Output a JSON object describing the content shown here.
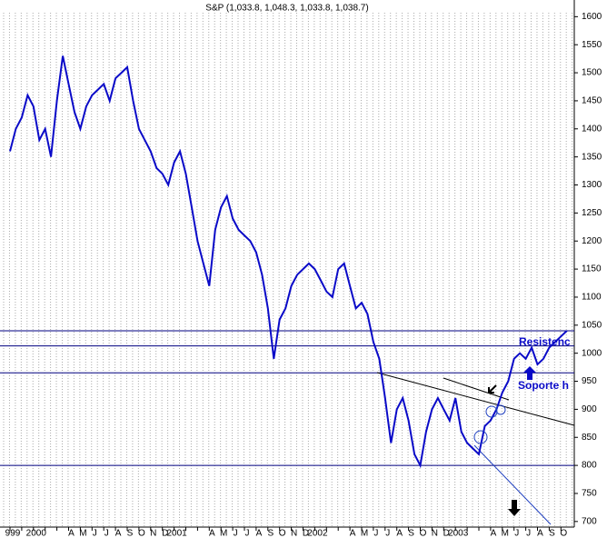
{
  "chart_data": {
    "type": "line",
    "title": "S&P (1,033.8, 1,048.3, 1,033.8, 1,038.7)",
    "x": [
      "999",
      null,
      null,
      null,
      "2000",
      null,
      null,
      null,
      null,
      null,
      "A",
      null,
      "M",
      null,
      "J",
      null,
      "J",
      null,
      "A",
      null,
      "S",
      null,
      "O",
      null,
      "N",
      null,
      "D",
      null,
      "2001",
      null,
      null,
      null,
      null,
      null,
      "A",
      null,
      "M",
      null,
      "J",
      null,
      "J",
      null,
      "A",
      null,
      "S",
      null,
      "O",
      null,
      "N",
      null,
      "D",
      null,
      "2002",
      null,
      null,
      null,
      null,
      null,
      "A",
      null,
      "M",
      null,
      "J",
      null,
      "J",
      null,
      "A",
      null,
      "S",
      null,
      "O",
      null,
      "N",
      null,
      "D",
      null,
      "2003",
      null,
      null,
      null,
      null,
      null,
      "A",
      null,
      "M",
      null,
      "J",
      null,
      "J",
      null,
      "A",
      null,
      "S",
      null,
      "O",
      null
    ],
    "series": [
      {
        "name": "S&P",
        "color": "#0a0ac8",
        "values": [
          1360,
          1400,
          1420,
          1460,
          1440,
          1380,
          1400,
          1350,
          1450,
          1530,
          1480,
          1430,
          1400,
          1440,
          1460,
          1470,
          1480,
          1450,
          1490,
          1500,
          1510,
          1450,
          1400,
          1380,
          1360,
          1330,
          1320,
          1300,
          1340,
          1360,
          1320,
          1260,
          1200,
          1160,
          1120,
          1220,
          1260,
          1280,
          1240,
          1220,
          1210,
          1200,
          1180,
          1140,
          1080,
          990,
          1060,
          1080,
          1120,
          1140,
          1150,
          1160,
          1150,
          1130,
          1110,
          1100,
          1150,
          1160,
          1120,
          1080,
          1090,
          1070,
          1020,
          990,
          920,
          840,
          900,
          920,
          880,
          820,
          800,
          860,
          900,
          920,
          900,
          880,
          920,
          860,
          840,
          830,
          820,
          870,
          880,
          900,
          930,
          950,
          990,
          1000,
          990,
          1010,
          980,
          990,
          1010,
          1020,
          1030,
          1040
        ]
      }
    ],
    "hlines": [
      1040,
      1013,
      965,
      800
    ],
    "ylim": [
      690,
      1620
    ],
    "yticks": [
      700,
      750,
      800,
      850,
      900,
      950,
      1000,
      1050,
      1100,
      1150,
      1200,
      1250,
      1300,
      1350,
      1400,
      1450,
      1500,
      1550,
      1600
    ],
    "annotations": [
      "Resistenc",
      "Soporte h"
    ]
  }
}
